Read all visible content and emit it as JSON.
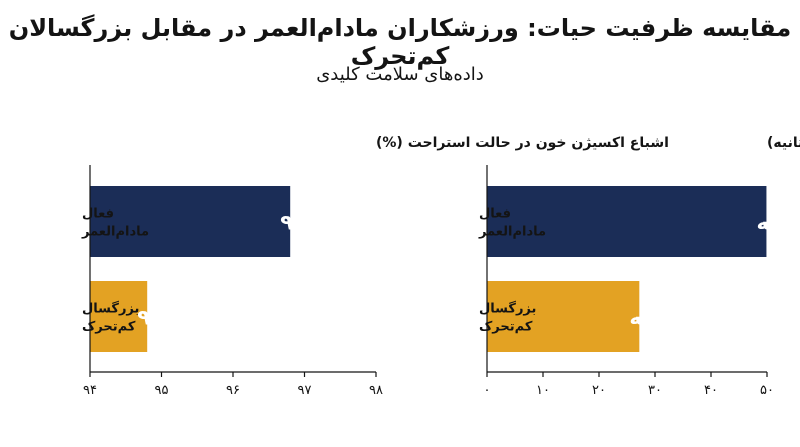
{
  "header": {
    "title": "مقایسه ظرفیت حیات: ورزشکاران مادام‌العمر در مقابل بزرگسالان کم‌تحرک",
    "subtitle": "داده‌های سلامت کلیدی"
  },
  "colors": {
    "navy": "#1b2d57",
    "gold": "#e3a223"
  },
  "chart_data": [
    {
      "type": "bar",
      "orientation": "horizontal",
      "title": "اشباع اکسیژن خون در حالت استراحت (%)",
      "categories": [
        [
          "فعال",
          "مادام‌العمر"
        ],
        [
          "بزرگسال",
          "کم‌تحرک"
        ]
      ],
      "values": [
        96.8,
        94.8
      ],
      "value_labels": [
        "۹۶.۸%",
        "۹۴.۸%"
      ],
      "xlim": [
        94,
        98
      ],
      "ticks": [
        94,
        95,
        96,
        97,
        98
      ],
      "tick_labels": [
        "۹۴",
        "۹۵",
        "۹۶",
        "۹۷",
        "۹۸"
      ],
      "bar_colors": [
        "#1b2d57",
        "#e3a223"
      ]
    },
    {
      "type": "bar",
      "orientation": "horizontal",
      "title": "تغییرپذیری ضربان قلب (میلی‌ثانیه)",
      "categories": [
        [
          "فعال",
          "مادام‌العمر"
        ],
        [
          "بزرگسال",
          "کم‌تحرک"
        ]
      ],
      "values": [
        49.9,
        27.2
      ],
      "value_labels": [
        "۴۹.۹ میلی‌ثانیه",
        "۲۷.۲ میلی‌ثانیه"
      ],
      "xlim": [
        0,
        50
      ],
      "ticks": [
        0,
        10,
        20,
        30,
        40,
        50
      ],
      "tick_labels": [
        "۰",
        "۱۰",
        "۲۰",
        "۳۰",
        "۴۰",
        "۵۰"
      ],
      "bar_colors": [
        "#1b2d57",
        "#e3a223"
      ]
    }
  ]
}
